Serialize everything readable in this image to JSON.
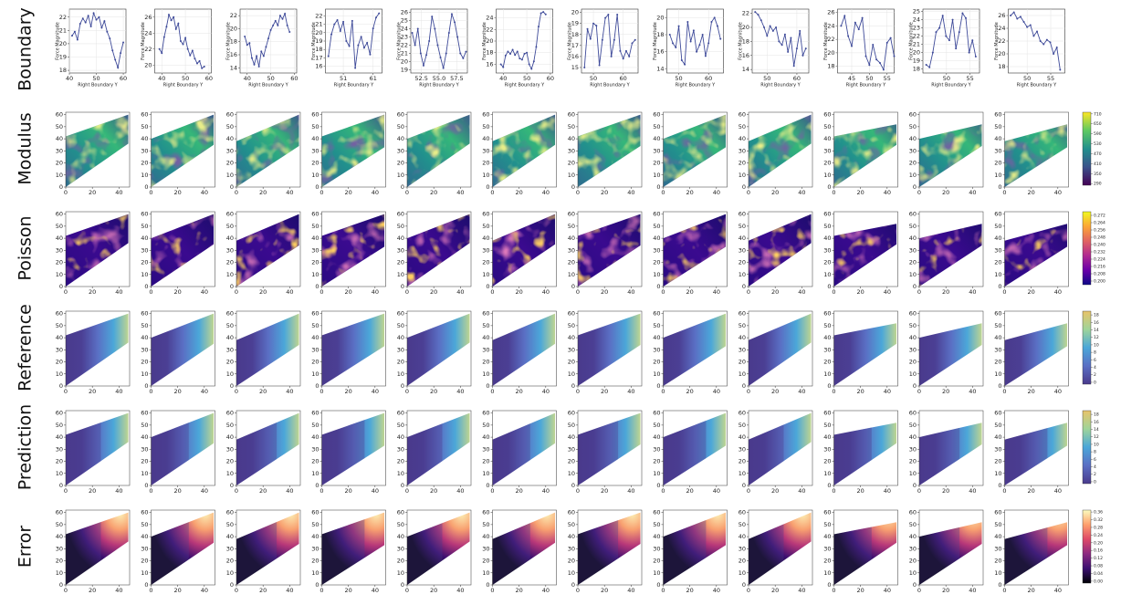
{
  "rows": [
    "Boundary",
    "Modulus",
    "Poisson",
    "Reference",
    "Prediction",
    "Error"
  ],
  "chart_data": [
    {
      "type": "line",
      "xlabel": "Right Boundary Y",
      "ylabel": "Force Magnitude",
      "xlim": [
        40,
        61
      ],
      "xticks": [
        40,
        50,
        60
      ],
      "ylim": [
        17.8,
        22.6
      ],
      "yticks": [
        18,
        19,
        20,
        21,
        22
      ],
      "grid": true,
      "x": [
        41,
        42,
        43,
        44,
        45,
        46,
        47,
        48,
        49,
        50,
        51,
        52,
        53,
        54,
        55,
        56,
        57,
        58,
        59,
        60
      ],
      "series": [
        {
          "color": "#3e4a99",
          "values": [
            20.6,
            20.9,
            20.3,
            21.5,
            21.9,
            21.6,
            22.1,
            21.3,
            22.3,
            21.8,
            22.0,
            21.2,
            21.7,
            20.9,
            20.4,
            19.5,
            18.8,
            18.2,
            19.3,
            20.1
          ]
        }
      ]
    },
    {
      "type": "line",
      "xlabel": "Right Boundary Y",
      "ylabel": "Force Magnitude",
      "xlim": [
        37,
        61
      ],
      "xticks": [
        40,
        50,
        60
      ],
      "ylim": [
        19,
        27
      ],
      "yticks": [
        20,
        22,
        24,
        26
      ],
      "grid": true,
      "x": [
        39,
        40,
        41,
        42,
        43,
        44,
        45,
        46,
        47,
        48,
        49,
        50,
        51,
        52,
        53,
        54,
        55,
        56,
        57,
        58
      ],
      "series": [
        {
          "color": "#3e4a99",
          "values": [
            22,
            21.5,
            23.5,
            24.8,
            26.3,
            25.6,
            26,
            24.5,
            25.2,
            23,
            22.6,
            23.4,
            22,
            21.2,
            21.8,
            20.8,
            20.2,
            20.5,
            19.6,
            19.8
          ]
        }
      ]
    },
    {
      "type": "line",
      "xlabel": "Right Boundary Y",
      "ylabel": "Force Magnitude",
      "xlim": [
        37,
        61
      ],
      "xticks": [
        40,
        50,
        60
      ],
      "ylim": [
        13.2,
        23
      ],
      "yticks": [
        14,
        16,
        18,
        20,
        22
      ],
      "grid": true,
      "x": [
        39,
        40,
        41,
        42,
        43,
        44,
        45,
        46,
        47,
        48,
        49,
        50,
        51,
        52,
        53,
        54,
        55,
        56,
        57,
        58
      ],
      "series": [
        {
          "color": "#3e4a99",
          "values": [
            18.8,
            17.5,
            17.8,
            15.5,
            14.5,
            15.8,
            14.2,
            16.5,
            15.8,
            17.2,
            18.5,
            19.8,
            20.5,
            21.2,
            20.5,
            22,
            21.5,
            22.3,
            20.5,
            19.5
          ]
        }
      ]
    },
    {
      "type": "line",
      "xlabel": "Right Boundary Y",
      "ylabel": "Force Magnitude",
      "xlim": [
        45,
        64
      ],
      "xticks": [
        51,
        61
      ],
      "ylim": [
        15.2,
        22.8
      ],
      "yticks": [
        16,
        17,
        18,
        19,
        20,
        21,
        22
      ],
      "grid": true,
      "x": [
        46,
        47,
        48,
        49,
        50,
        51,
        52,
        53,
        54,
        55,
        56,
        57,
        58,
        59,
        60,
        61,
        62,
        63
      ],
      "series": [
        {
          "color": "#3e4a99",
          "values": [
            17.2,
            19.8,
            21,
            21.5,
            20.2,
            21.3,
            19,
            18.4,
            21.4,
            15.8,
            18.5,
            19.5,
            18.2,
            18.8,
            17.4,
            20.5,
            21.8,
            22.3
          ]
        }
      ]
    },
    {
      "type": "line",
      "xlabel": "Right Boundary Y",
      "ylabel": "Force Magnitude",
      "xlim": [
        51,
        59
      ],
      "xticks": [
        52.5,
        {
          "value": 55,
          "label": "55.0"
        },
        57.5
      ],
      "ylim": [
        18.6,
        26.4
      ],
      "yticks": [
        19,
        20,
        21,
        22,
        23,
        24,
        25,
        26
      ],
      "grid": true,
      "x": [
        51.2,
        51.6,
        52,
        52.4,
        52.8,
        53.2,
        53.6,
        54,
        54.4,
        54.8,
        55.2,
        55.6,
        56,
        56.4,
        56.8,
        57.2,
        57.6,
        58,
        58.4,
        58.8
      ],
      "series": [
        {
          "color": "#3e4a99",
          "values": [
            23.5,
            22,
            24,
            21,
            19.5,
            20.8,
            22.5,
            25.5,
            24,
            22,
            20.5,
            19.2,
            21,
            23.5,
            25.8,
            24.8,
            23,
            21,
            20.4,
            21.2
          ]
        }
      ]
    },
    {
      "type": "line",
      "xlabel": "Right Boundary Y",
      "ylabel": "Force Magnitude",
      "xlim": [
        37,
        61
      ],
      "xticks": [
        40,
        50,
        60
      ],
      "ylim": [
        14.5,
        25.5
      ],
      "yticks": [
        16,
        18,
        20,
        22,
        24
      ],
      "grid": true,
      "x": [
        39,
        40,
        41,
        42,
        43,
        44,
        45,
        46,
        47,
        48,
        49,
        50,
        51,
        52,
        53,
        54,
        55,
        56,
        57,
        58
      ],
      "series": [
        {
          "color": "#3e4a99",
          "values": [
            16,
            15.5,
            17.5,
            18.2,
            17.8,
            18.5,
            17.6,
            18.2,
            17,
            16.8,
            17.8,
            18,
            16,
            15.2,
            16.5,
            19,
            22.5,
            24.8,
            25,
            24.6
          ]
        }
      ]
    },
    {
      "type": "line",
      "xlabel": "Right Boundary Y",
      "ylabel": "Force Magnitude",
      "xlim": [
        46,
        65
      ],
      "xticks": [
        50,
        60
      ],
      "ylim": [
        14.5,
        20.3
      ],
      "yticks": [
        15,
        16,
        17,
        18,
        19,
        20
      ],
      "grid": true,
      "x": [
        47,
        48,
        49,
        50,
        51,
        52,
        53,
        54,
        55,
        56,
        57,
        58,
        59,
        60,
        61,
        62,
        63,
        64
      ],
      "series": [
        {
          "color": "#3e4a99",
          "values": [
            15,
            18.5,
            17.6,
            19,
            18.8,
            15.2,
            17.5,
            19.5,
            19.8,
            16,
            17.5,
            19.8,
            16.5,
            15.8,
            16.5,
            16,
            17.2,
            17.5
          ]
        }
      ]
    },
    {
      "type": "line",
      "xlabel": "Right Boundary Y",
      "ylabel": "Force Magnitude",
      "xlim": [
        46,
        65
      ],
      "xticks": [
        50,
        60
      ],
      "ylim": [
        13.5,
        21
      ],
      "yticks": [
        14,
        16,
        18,
        20
      ],
      "grid": true,
      "x": [
        47,
        48,
        49,
        50,
        51,
        52,
        53,
        54,
        55,
        56,
        57,
        58,
        59,
        60,
        61,
        62,
        63,
        64
      ],
      "series": [
        {
          "color": "#3e4a99",
          "values": [
            18,
            17,
            16.5,
            19,
            15,
            14.5,
            19.5,
            17.2,
            18.5,
            16,
            16.8,
            18,
            15.5,
            17,
            19.5,
            20,
            19,
            17.5
          ]
        }
      ]
    },
    {
      "type": "line",
      "xlabel": "Right Boundary Y",
      "ylabel": "Force Magnitude",
      "xlim": [
        45,
        64
      ],
      "xticks": [
        50,
        60
      ],
      "ylim": [
        13.5,
        22.6
      ],
      "yticks": [
        14,
        16,
        18,
        20,
        22
      ],
      "grid": true,
      "x": [
        46,
        47,
        48,
        49,
        50,
        51,
        52,
        53,
        54,
        55,
        56,
        57,
        58,
        59,
        60,
        61,
        62,
        63
      ],
      "series": [
        {
          "color": "#3e4a99",
          "values": [
            22.2,
            21.8,
            21,
            20,
            18.8,
            20.2,
            19.5,
            20,
            18,
            17.5,
            19,
            16.5,
            18.5,
            14.5,
            17,
            19.5,
            16,
            17
          ]
        }
      ]
    },
    {
      "type": "line",
      "xlabel": "Right Boundary Y",
      "ylabel": "Force Magnitude",
      "xlim": [
        41,
        57
      ],
      "xticks": [
        45,
        50,
        55
      ],
      "ylim": [
        17,
        26.5
      ],
      "yticks": [
        18,
        20,
        22,
        24,
        26
      ],
      "grid": true,
      "x": [
        42,
        43,
        44,
        45,
        46,
        47,
        48,
        49,
        50,
        51,
        52,
        53,
        54,
        55,
        56,
        57
      ],
      "series": [
        {
          "color": "#3e4a99",
          "values": [
            24,
            25.5,
            22.5,
            21,
            24.5,
            23.5,
            25.2,
            19.5,
            18.2,
            21.2,
            19,
            18.5,
            17.5,
            21.5,
            22.2,
            19.5
          ]
        }
      ]
    },
    {
      "type": "line",
      "xlabel": "Right Boundary Y",
      "ylabel": "Force Magnitude",
      "xlim": [
        45,
        57
      ],
      "xticks": [
        50,
        55
      ],
      "ylim": [
        17.5,
        25.3
      ],
      "yticks": [
        18,
        19,
        20,
        21,
        22,
        23,
        24,
        25
      ],
      "grid": true,
      "x": [
        45.7,
        46.4,
        47.1,
        47.8,
        48.5,
        49.2,
        49.9,
        50.6,
        51.3,
        52,
        52.7,
        53.4,
        54.1,
        54.8,
        55.5,
        56.2
      ],
      "series": [
        {
          "color": "#3e4a99",
          "values": [
            18.5,
            18.2,
            20,
            22.5,
            23,
            24.5,
            22,
            21.5,
            24,
            20.5,
            22.5,
            24.8,
            24.2,
            20,
            21.5,
            19.5
          ]
        }
      ]
    },
    {
      "type": "line",
      "xlabel": "Right Boundary Y",
      "ylabel": "Force Magnitude",
      "xlim": [
        46,
        58
      ],
      "xticks": [
        50,
        55
      ],
      "ylim": [
        17,
        27
      ],
      "yticks": [
        18,
        20,
        22,
        24,
        26
      ],
      "grid": true,
      "x": [
        46.5,
        47.2,
        47.9,
        48.6,
        49.3,
        50,
        50.7,
        51.4,
        52.1,
        52.8,
        53.5,
        54.2,
        54.9,
        55.6,
        56.3,
        57
      ],
      "series": [
        {
          "color": "#3e4a99",
          "values": [
            26,
            26.5,
            25.5,
            25.8,
            25,
            24.2,
            24.5,
            22.8,
            23.5,
            22,
            21.5,
            22.2,
            21.8,
            20,
            21,
            17.5
          ]
        }
      ]
    }
  ],
  "field_axes": {
    "xlim": [
      0,
      48
    ],
    "ylim": [
      0,
      62
    ],
    "xticks": [
      0,
      20,
      40
    ],
    "yticks": [
      0,
      10,
      20,
      30,
      40,
      50,
      60
    ]
  },
  "colorbars": [
    {
      "lim": [
        280,
        720
      ],
      "ticks": [
        290,
        350,
        410,
        470,
        530,
        590,
        650,
        710
      ],
      "colors": [
        "#440154",
        "#3b528b",
        "#21908d",
        "#5ec962",
        "#fde725"
      ]
    },
    {
      "lim": [
        0.196,
        0.276
      ],
      "ticks": [
        {
          "value": 0.2,
          "label": "0.200"
        },
        0.208,
        0.216,
        0.224,
        0.232,
        {
          "value": 0.24,
          "label": "0.240"
        },
        0.248,
        0.256,
        0.264,
        0.272
      ],
      "colors": [
        "#0d0887",
        "#6a00a8",
        "#b12a90",
        "#e16462",
        "#fca636",
        "#f0f921"
      ]
    },
    {
      "lim": [
        -0.5,
        19
      ],
      "ticks": [
        0,
        2,
        4,
        6,
        8,
        10,
        12,
        14,
        16,
        18
      ],
      "colors": [
        "#4a3a8c",
        "#5a6fc4",
        "#4ba7d9",
        "#9fd49a",
        "#e9c46a"
      ]
    },
    {
      "lim": [
        -0.5,
        19
      ],
      "ticks": [
        0,
        2,
        4,
        6,
        8,
        10,
        12,
        14,
        16,
        18
      ],
      "colors": [
        "#4a3a8c",
        "#5a6fc4",
        "#4ba7d9",
        "#9fd49a",
        "#e9c46a"
      ]
    },
    {
      "lim": [
        -0.01,
        0.37
      ],
      "ticks": [
        {
          "value": 0,
          "label": "0.00"
        },
        0.04,
        0.08,
        0.12,
        0.16,
        {
          "value": 0.2,
          "label": "0.20"
        },
        0.24,
        0.28,
        0.32,
        0.36
      ],
      "colors": [
        "#000004",
        "#3b0f70",
        "#8c2981",
        "#de4968",
        "#fe9f6d",
        "#fcfdbf"
      ]
    }
  ]
}
